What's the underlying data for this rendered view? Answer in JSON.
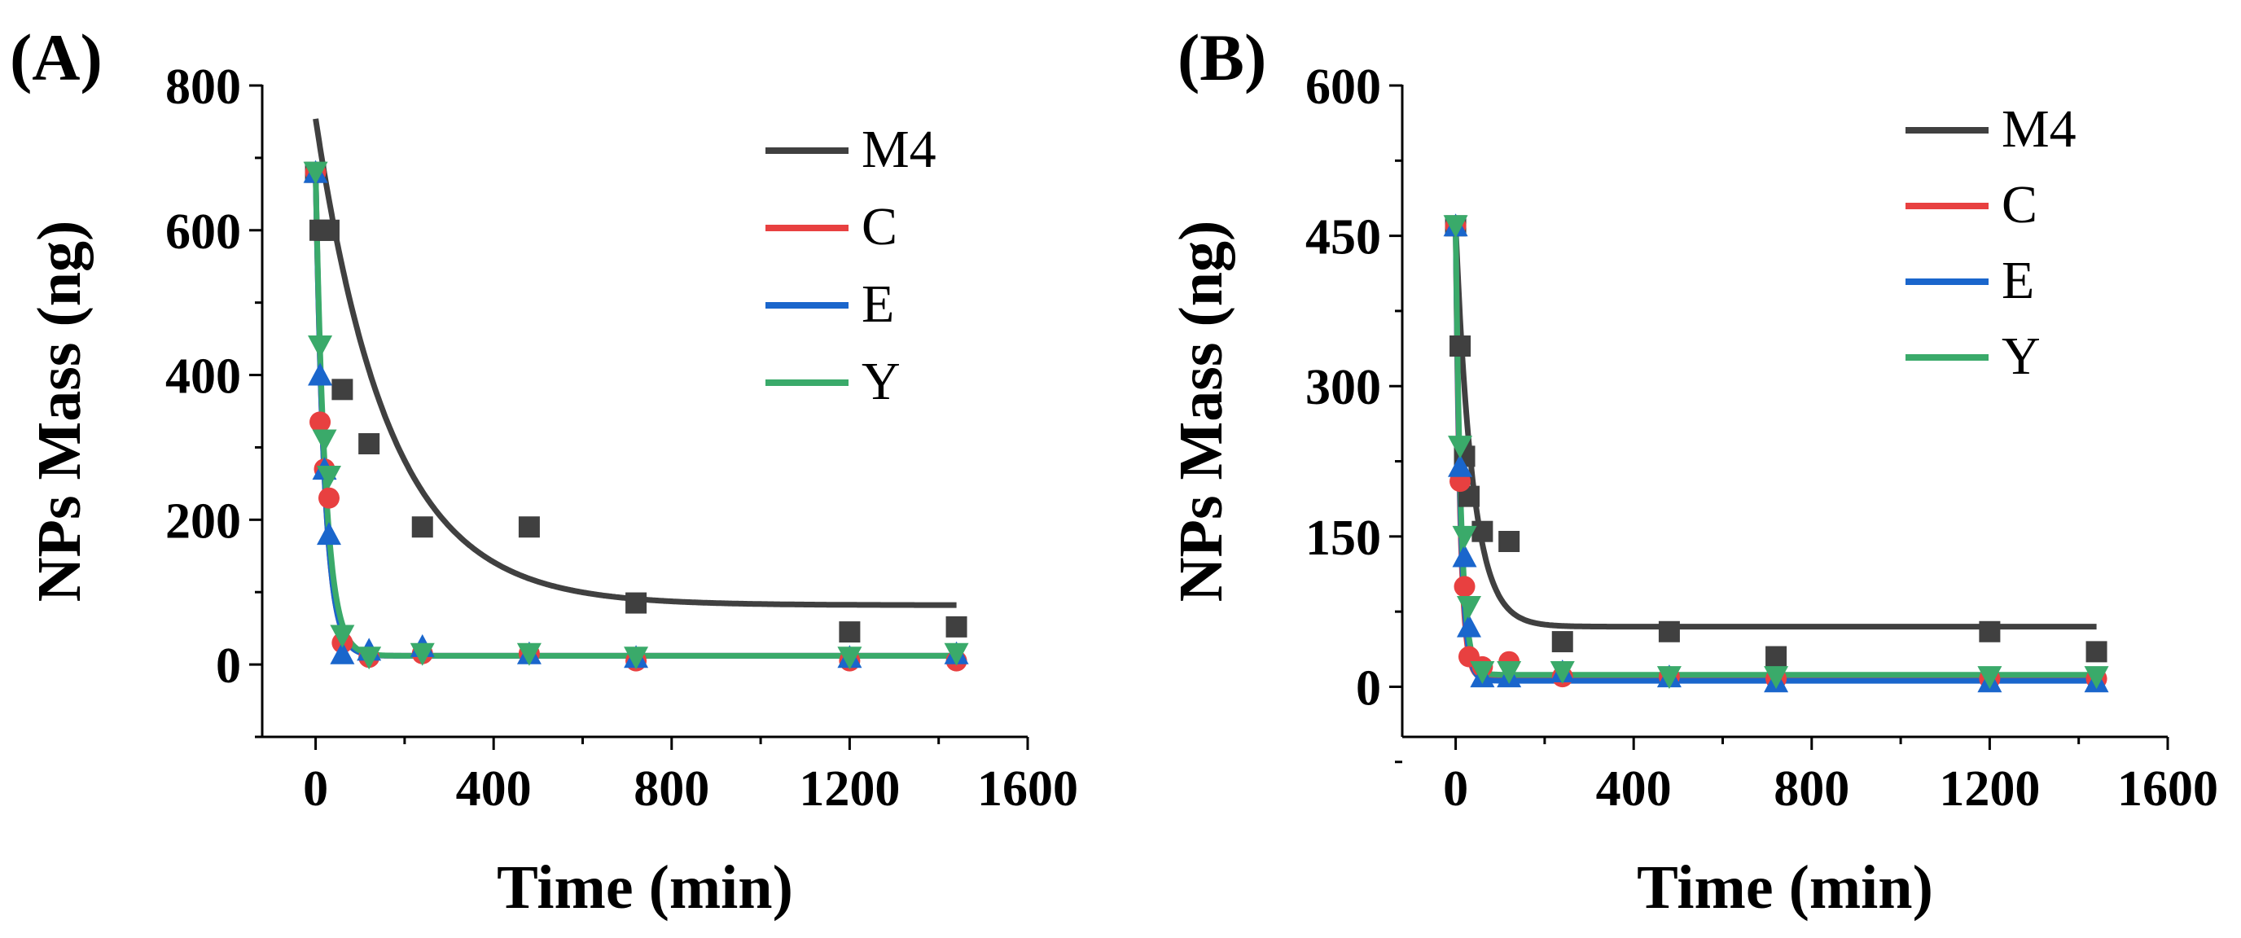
{
  "chart_data": [
    {
      "panel_label": "(A)",
      "type": "scatter",
      "xlabel": "Time (min)",
      "ylabel": "NPs Mass (ng)",
      "xlim": [
        -120,
        1600
      ],
      "ylim": [
        -100,
        800
      ],
      "x_ticks": [
        0,
        400,
        800,
        1200,
        1600
      ],
      "y_ticks": [
        0,
        200,
        400,
        600,
        800
      ],
      "legend": {
        "position": "top-right",
        "entries": [
          "M4",
          "C",
          "E",
          "Y"
        ]
      },
      "series": [
        {
          "name": "M4",
          "color": "#404040",
          "marker": "square",
          "x": [
            0,
            10,
            20,
            30,
            60,
            120,
            240,
            480,
            720,
            1200,
            1440
          ],
          "y": [
            680,
            600,
            600,
            600,
            380,
            305,
            190,
            190,
            85,
            45,
            52
          ],
          "fit": {
            "model": "exponential",
            "y0": 82,
            "A": 672,
            "tau": 165
          }
        },
        {
          "name": "C",
          "color": "#e84040",
          "marker": "circle",
          "x": [
            0,
            10,
            20,
            30,
            60,
            120,
            240,
            480,
            720,
            1200,
            1440
          ],
          "y": [
            680,
            335,
            270,
            230,
            30,
            10,
            15,
            15,
            5,
            5,
            5
          ],
          "fit": {
            "model": "exponential",
            "y0": 12,
            "A": 668,
            "tau": 20
          }
        },
        {
          "name": "E",
          "color": "#1a66cc",
          "marker": "triangle-up",
          "x": [
            0,
            10,
            20,
            30,
            60,
            120,
            240,
            480,
            720,
            1200,
            1440
          ],
          "y": [
            680,
            400,
            270,
            180,
            15,
            20,
            25,
            15,
            10,
            10,
            15
          ],
          "fit": {
            "model": "exponential",
            "y0": 12,
            "A": 668,
            "tau": 20
          }
        },
        {
          "name": "Y",
          "color": "#3aaa6a",
          "marker": "triangle-down",
          "x": [
            0,
            10,
            20,
            30,
            60,
            120,
            240,
            480,
            720,
            1200,
            1440
          ],
          "y": [
            680,
            440,
            310,
            260,
            40,
            10,
            15,
            15,
            10,
            10,
            15
          ],
          "fit": {
            "model": "exponential",
            "y0": 12,
            "A": 668,
            "tau": 22
          }
        }
      ]
    },
    {
      "panel_label": "(B)",
      "type": "scatter",
      "xlabel": "Time (min)",
      "ylabel": "NPs Mass (ng)",
      "xlim": [
        -120,
        1600
      ],
      "ylim": [
        -50,
        600
      ],
      "x_ticks": [
        0,
        400,
        800,
        1200,
        1600
      ],
      "y_ticks": [
        0,
        150,
        300,
        450,
        600
      ],
      "legend": {
        "position": "top-right",
        "entries": [
          "M4",
          "C",
          "E",
          "Y"
        ]
      },
      "series": [
        {
          "name": "M4",
          "color": "#404040",
          "marker": "square",
          "x": [
            0,
            10,
            20,
            30,
            60,
            120,
            240,
            480,
            720,
            1200,
            1440
          ],
          "y": [
            460,
            340,
            230,
            190,
            155,
            145,
            45,
            55,
            30,
            55,
            35
          ],
          "fit": {
            "model": "exponential",
            "y0": 60,
            "A": 400,
            "tau": 38
          }
        },
        {
          "name": "C",
          "color": "#e84040",
          "marker": "circle",
          "x": [
            0,
            10,
            20,
            30,
            60,
            120,
            240,
            480,
            720,
            1200,
            1440
          ],
          "y": [
            460,
            205,
            100,
            30,
            20,
            25,
            10,
            10,
            8,
            8,
            8
          ],
          "fit": {
            "model": "exponential",
            "y0": 8,
            "A": 452,
            "tau": 10
          }
        },
        {
          "name": "E",
          "color": "#1a66cc",
          "marker": "triangle-up",
          "x": [
            0,
            10,
            20,
            30,
            60,
            120,
            240,
            480,
            720,
            1200,
            1440
          ],
          "y": [
            460,
            220,
            130,
            60,
            10,
            10,
            15,
            10,
            5,
            5,
            5
          ],
          "fit": {
            "model": "exponential",
            "y0": 6,
            "A": 454,
            "tau": 11
          }
        },
        {
          "name": "Y",
          "color": "#3aaa6a",
          "marker": "triangle-down",
          "x": [
            0,
            10,
            20,
            30,
            60,
            120,
            240,
            480,
            720,
            1200,
            1440
          ],
          "y": [
            460,
            240,
            150,
            80,
            15,
            15,
            15,
            10,
            10,
            10,
            10
          ],
          "fit": {
            "model": "exponential",
            "y0": 12,
            "A": 448,
            "tau": 12
          }
        }
      ]
    }
  ]
}
